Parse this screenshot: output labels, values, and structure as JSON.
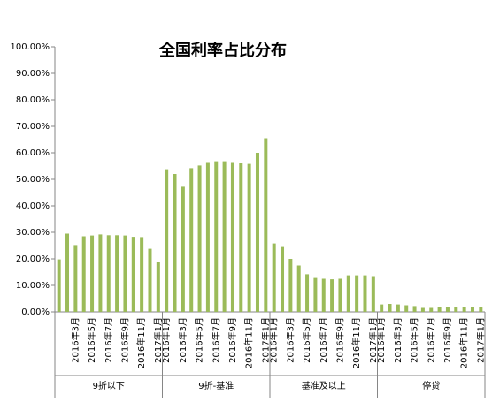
{
  "chart_data": {
    "type": "bar",
    "title": "全国利率占比分布",
    "groups": [
      "9折以下",
      "9折-基准",
      "基准及以上",
      "停贷"
    ],
    "categories": [
      null,
      null,
      "2016年3月",
      null,
      "2016年5月",
      null,
      "2016年7月",
      null,
      "2016年9月",
      null,
      "2016年11月",
      null,
      "2017年1月",
      "2016年1月",
      null,
      "2016年3月",
      null,
      "2016年5月",
      null,
      "2016年7月",
      null,
      "2016年9月",
      null,
      "2016年11月",
      null,
      "2017年1月",
      "2016年1月",
      null,
      "2016年3月",
      null,
      "2016年5月",
      null,
      "2016年7月",
      null,
      "2016年9月",
      null,
      "2016年11月",
      null,
      "2017年1月",
      "2016年1月",
      null,
      "2016年3月",
      null,
      "2016年5月",
      null,
      "2016年7月",
      null,
      "2016年9月",
      null,
      "2016年11月",
      null,
      "2017年1月"
    ],
    "values": [
      19.8,
      29.5,
      25.2,
      28.5,
      28.8,
      29.2,
      28.9,
      28.9,
      28.8,
      28.3,
      28.2,
      23.8,
      18.8,
      53.8,
      52,
      47.2,
      54.2,
      55.2,
      56.5,
      56.8,
      56.8,
      56.5,
      56.3,
      55.8,
      60,
      65.5,
      25.8,
      24.8,
      20,
      17.5,
      14.2,
      12.8,
      12.5,
      12.3,
      12.5,
      13.8,
      13.8,
      13.8,
      13.5,
      2.8,
      3,
      2.8,
      2.5,
      2.2,
      1.5,
      1.5,
      1.8,
      1.8,
      1.8,
      1.8,
      1.8,
      1.8
    ],
    "color": "#9bbb59",
    "ylim": [
      0,
      100
    ],
    "yticks": [
      {
        "value": 0,
        "label": "0.00%"
      },
      {
        "value": 10,
        "label": "10.00%"
      },
      {
        "value": 20,
        "label": "20.00%"
      },
      {
        "value": 30,
        "label": "30.00%"
      },
      {
        "value": 40,
        "label": "40.00%"
      },
      {
        "value": 50,
        "label": "50.00%"
      },
      {
        "value": 60,
        "label": "60.00%"
      },
      {
        "value": 70,
        "label": "70.00%"
      },
      {
        "value": 80,
        "label": "80.00%"
      },
      {
        "value": 90,
        "label": "90.00%"
      },
      {
        "value": 100,
        "label": "100.00%"
      }
    ]
  }
}
